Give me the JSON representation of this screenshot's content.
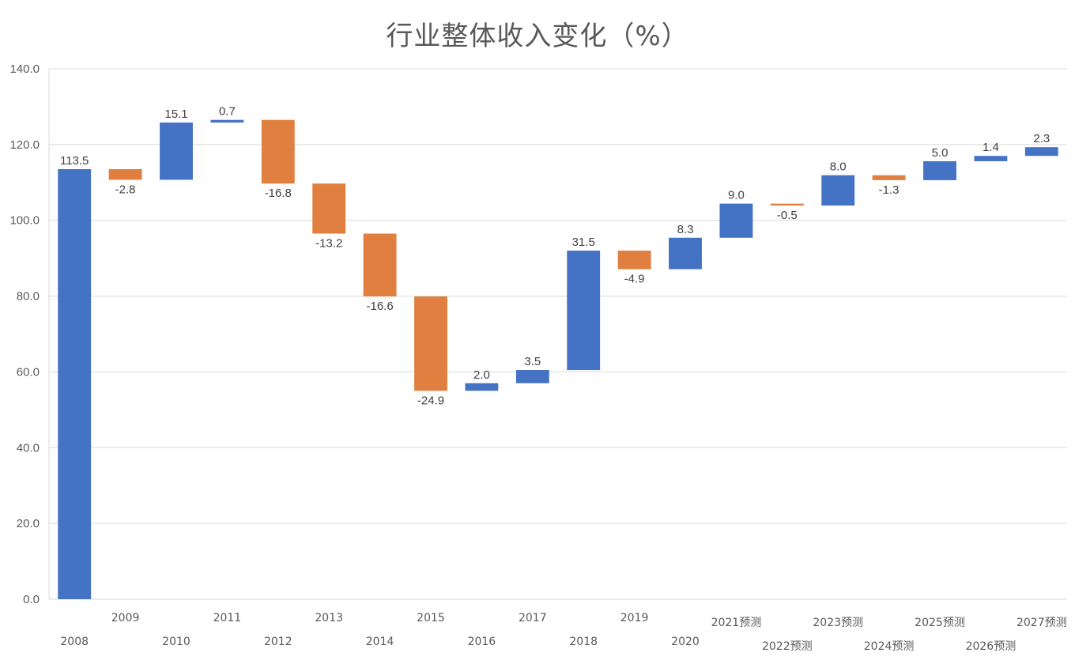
{
  "chart_data": {
    "type": "bar",
    "subtype": "waterfall",
    "title": "行业整体收入变化（%）",
    "categories": [
      "2008",
      "2009",
      "2010",
      "2011",
      "2012",
      "2013",
      "2014",
      "2015",
      "2016",
      "2017",
      "2018",
      "2019",
      "2020",
      "2021预测",
      "2022预测",
      "2023预测",
      "2024预测",
      "2025预测",
      "2026预测",
      "2027预测"
    ],
    "values": [
      113.5,
      -2.8,
      15.1,
      0.7,
      -16.8,
      -13.2,
      -16.6,
      -24.9,
      2.0,
      3.5,
      31.5,
      -4.9,
      8.3,
      9.0,
      -0.5,
      8.0,
      -1.3,
      5.0,
      1.4,
      2.3
    ],
    "value_labels": [
      "113.5",
      "-2.8",
      "15.1",
      "0.7",
      "-16.8",
      "-13.2",
      "-16.6",
      "-24.9",
      "2.0",
      "3.5",
      "31.5",
      "-4.9",
      "8.3",
      "9.0",
      "-0.5",
      "8.0",
      "-1.3",
      "5.0",
      "1.4",
      "2.3"
    ],
    "ylim": [
      0,
      140
    ],
    "yticks": [
      "0.0",
      "20.0",
      "40.0",
      "60.0",
      "80.0",
      "100.0",
      "120.0",
      "140.0"
    ],
    "xlabel": "",
    "ylabel": "",
    "grid": true,
    "legend": "none",
    "colors": {
      "increase": "#4472C4",
      "decrease": "#E07F3F",
      "grid": "#d9d9d9",
      "text": "#595959"
    }
  }
}
